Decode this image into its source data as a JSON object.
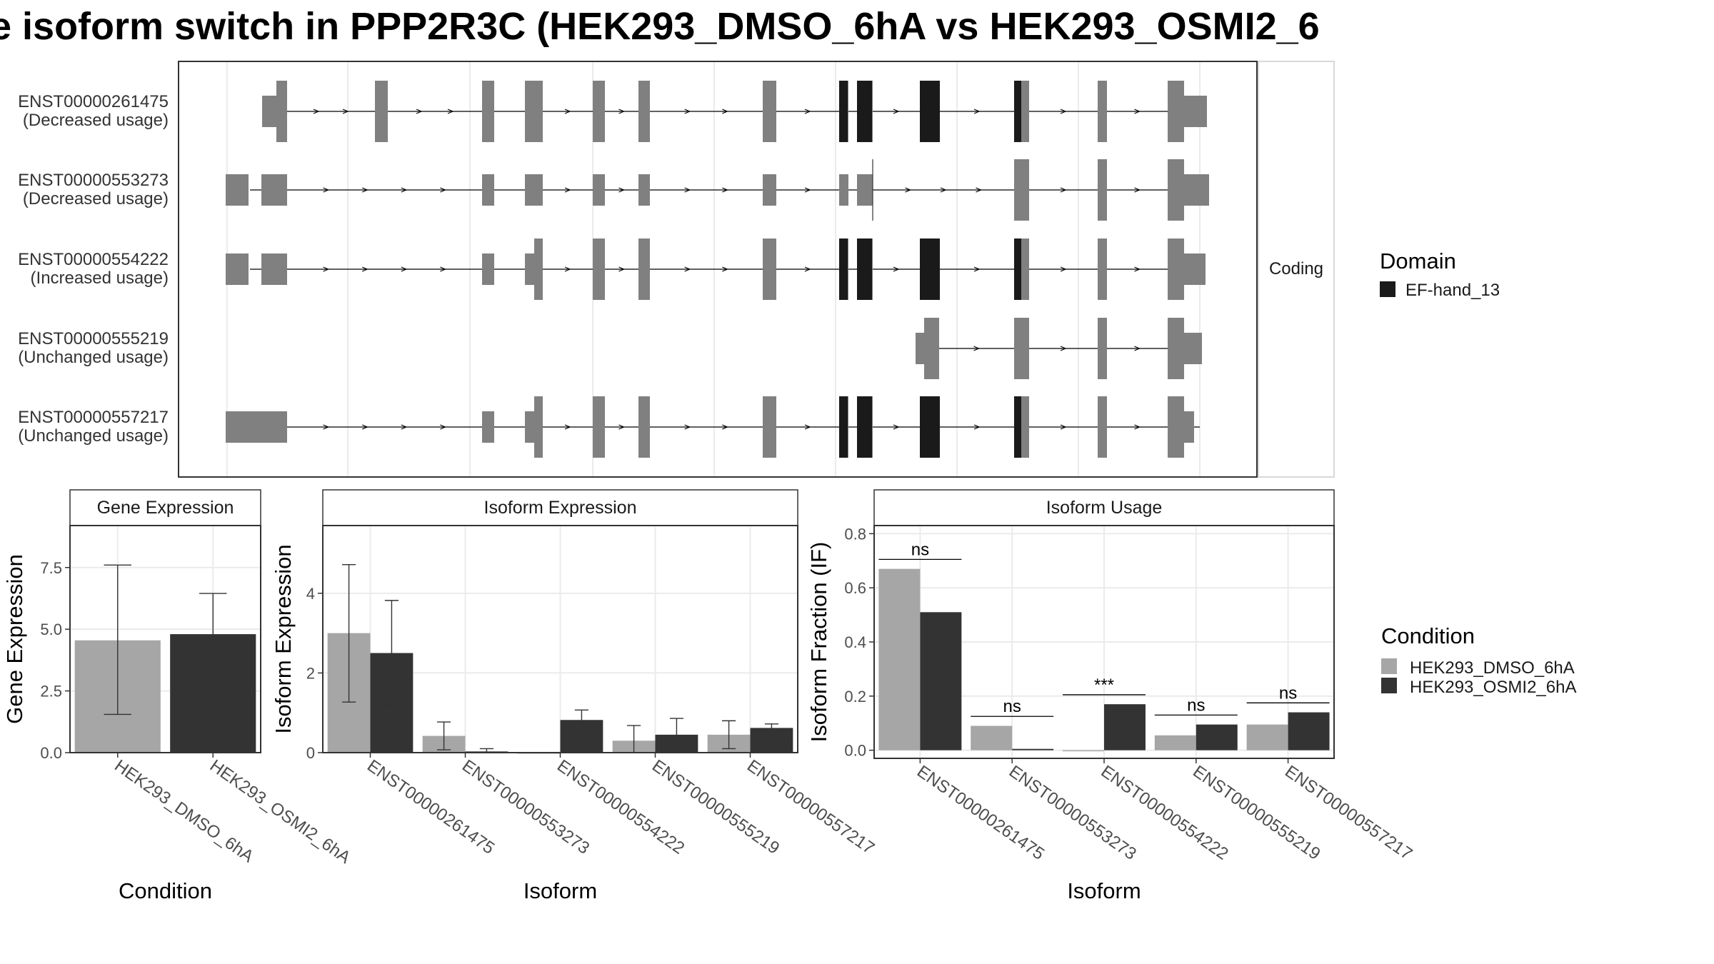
{
  "title": "e isoform switch in PPP2R3C (HEK293_DMSO_6hA vs HEK293_OSMI2_6",
  "chart_data": [
    {
      "type": "gene-structure",
      "facet_label": "Coding",
      "transcripts": [
        {
          "id": "ENST00000261475",
          "usage": "(Decreased usage)"
        },
        {
          "id": "ENST00000553273",
          "usage": "(Decreased usage)"
        },
        {
          "id": "ENST00000554222",
          "usage": "(Increased usage)"
        },
        {
          "id": "ENST00000555219",
          "usage": "(Unchanged usage)"
        },
        {
          "id": "ENST00000557217",
          "usage": "(Unchanged usage)"
        }
      ],
      "domain_legend": {
        "title": "Domain",
        "entries": [
          {
            "name": "EF-hand_13",
            "color": "#1a1a1a"
          }
        ]
      }
    },
    {
      "type": "bar",
      "title": "Gene Expression",
      "xlabel": "Condition",
      "ylabel": "Gene Expression",
      "ylim": [
        0,
        9.2
      ],
      "yticks": [
        "0.0",
        "2.5",
        "5.0",
        "7.5"
      ],
      "categories": [
        "HEK293_DMSO_6hA",
        "HEK293_OSMI2_6hA"
      ],
      "values": [
        4.55,
        4.8
      ],
      "err_low": [
        1.55,
        3.15
      ],
      "err_high": [
        7.6,
        6.45
      ]
    },
    {
      "type": "bar",
      "title": "Isoform Expression",
      "xlabel": "Isoform",
      "ylabel": "Isoform Expression",
      "ylim": [
        0,
        5.7
      ],
      "yticks": [
        "0",
        "2",
        "4"
      ],
      "categories": [
        "ENST00000261475",
        "ENST00000553273",
        "ENST00000554222",
        "ENST00000555219",
        "ENST00000557217"
      ],
      "series": [
        {
          "name": "HEK293_DMSO_6hA",
          "values": [
            3.0,
            0.42,
            0.0,
            0.3,
            0.45
          ],
          "err_low": [
            1.27,
            0.07,
            0.0,
            0.0,
            0.1
          ],
          "err_high": [
            4.72,
            0.77,
            0.0,
            0.68,
            0.8
          ]
        },
        {
          "name": "HEK293_OSMI2_6hA",
          "values": [
            2.5,
            0.03,
            0.82,
            0.45,
            0.62
          ],
          "err_low": [
            1.2,
            0.0,
            0.58,
            0.02,
            0.52
          ],
          "err_high": [
            3.82,
            0.1,
            1.07,
            0.86,
            0.72
          ]
        }
      ]
    },
    {
      "type": "bar",
      "title": "Isoform Usage",
      "xlabel": "Isoform",
      "ylabel": "Isoform Fraction (IF)",
      "ylim": [
        -0.03,
        0.83
      ],
      "yticks": [
        "0.0",
        "0.2",
        "0.4",
        "0.6",
        "0.8"
      ],
      "categories": [
        "ENST00000261475",
        "ENST00000553273",
        "ENST00000554222",
        "ENST00000555219",
        "ENST00000557217"
      ],
      "series": [
        {
          "name": "HEK293_DMSO_6hA",
          "values": [
            0.67,
            0.09,
            0.0,
            0.055,
            0.095
          ]
        },
        {
          "name": "HEK293_OSMI2_6hA",
          "values": [
            0.51,
            0.005,
            0.17,
            0.095,
            0.14
          ]
        }
      ],
      "significance": [
        "ns",
        "ns",
        "***",
        "ns",
        "ns"
      ],
      "sig_y": [
        0.705,
        0.125,
        0.205,
        0.13,
        0.175
      ]
    }
  ],
  "condition_legend": {
    "title": "Condition",
    "entries": [
      {
        "name": "HEK293_DMSO_6hA",
        "color": "#a6a6a6"
      },
      {
        "name": "HEK293_OSMI2_6hA",
        "color": "#333333"
      }
    ]
  },
  "colors": {
    "exon": "#808080",
    "domain": "#1a1a1a",
    "dmso": "#a6a6a6",
    "osmi": "#333333"
  }
}
